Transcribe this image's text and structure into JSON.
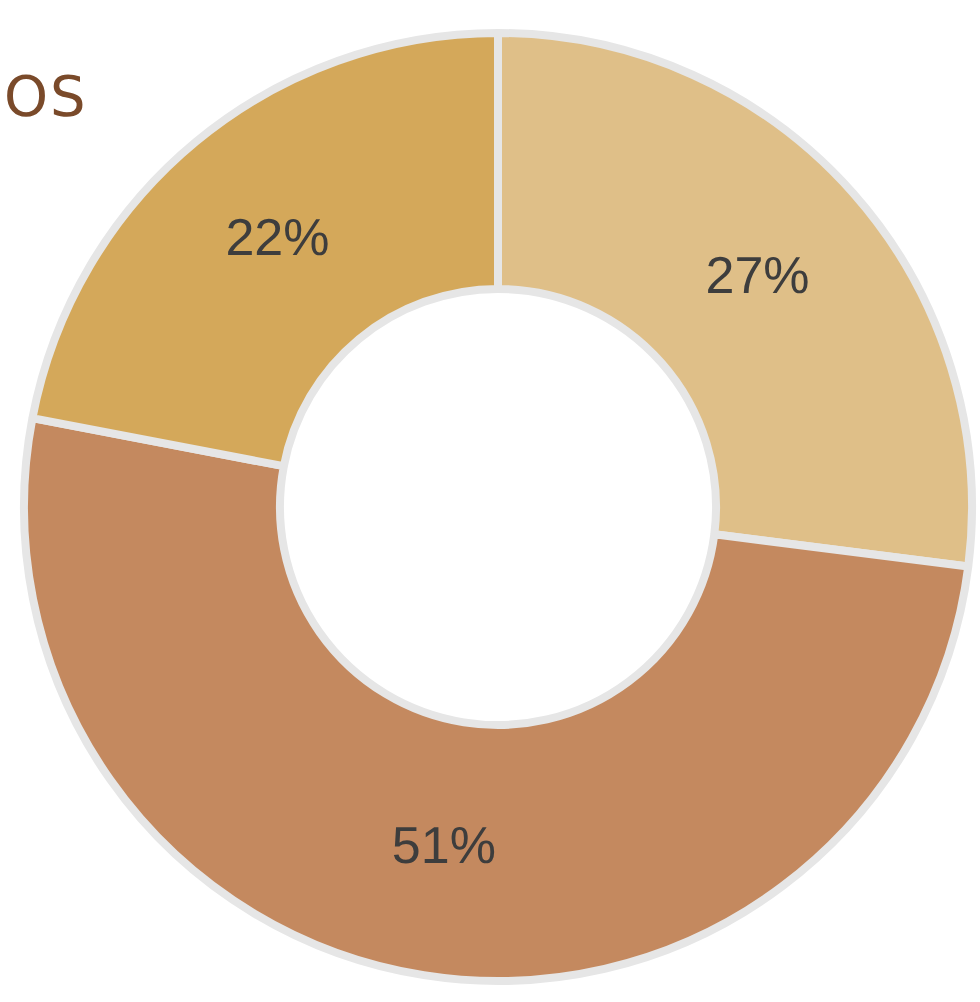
{
  "chart_data": {
    "type": "donut",
    "title": "OS",
    "categories": [
      null,
      null,
      null
    ],
    "values": [
      27,
      51,
      22
    ],
    "value_labels": [
      "27%",
      "51%",
      "22%"
    ],
    "colors": [
      "#dfbf88",
      "#c4895f",
      "#d4a85a"
    ],
    "legend": false
  }
}
